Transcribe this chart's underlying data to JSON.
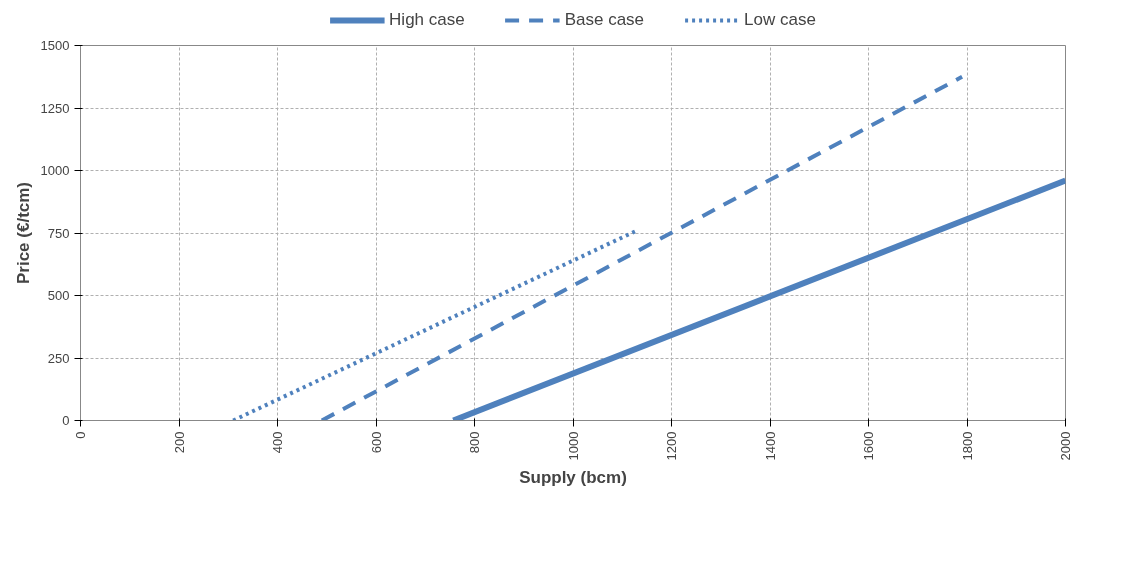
{
  "chart_data": {
    "type": "line",
    "xlabel": "Supply (bcm)",
    "ylabel": "Price (€/tcm)",
    "xlim": [
      0,
      2000
    ],
    "xticks": [
      0,
      200,
      400,
      600,
      800,
      1000,
      1200,
      1400,
      1600,
      1800,
      2000
    ],
    "ylim": [
      0,
      1500
    ],
    "yticks": [
      0,
      250,
      500,
      750,
      1000,
      1250,
      1500
    ],
    "grid": true,
    "legend": "top",
    "series": [
      {
        "name": "High case",
        "color": "#4f81bd",
        "line_style": "solid",
        "x": [
          757,
          2000
        ],
        "values": [
          0,
          960
        ]
      },
      {
        "name": "Base case",
        "color": "#4f81bd",
        "line_style": "dashed",
        "x": [
          490,
          1790
        ],
        "values": [
          0,
          1375
        ]
      },
      {
        "name": "Low case",
        "color": "#4f81bd",
        "line_style": "dotted",
        "x": [
          310,
          1130
        ],
        "values": [
          0,
          760
        ]
      }
    ]
  }
}
